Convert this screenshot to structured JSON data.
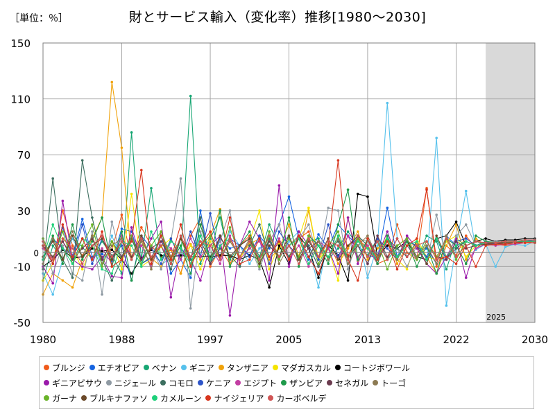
{
  "header": {
    "unit": "［単位：％］",
    "title": "財とサービス輸入（変化率）推移[1980～2030]"
  },
  "chart_data": {
    "type": "line",
    "title": "財とサービス輸入（変化率）推移[1980～2030]",
    "unit": "％",
    "xlabel": "",
    "ylabel": "",
    "xlim": [
      1980,
      2030
    ],
    "ylim": [
      -50,
      150
    ],
    "x_ticks": [
      "1980",
      "1988",
      "1997",
      "2005",
      "2013",
      "2022",
      "2030"
    ],
    "y_ticks": [
      "150",
      "110",
      "70",
      "30",
      "-10",
      "-50"
    ],
    "zero_label": "0",
    "forecast_start": 2025,
    "forecast_label": "2025",
    "grid": true,
    "legend_position": "bottom",
    "x": [
      1980,
      1981,
      1982,
      1983,
      1984,
      1985,
      1986,
      1987,
      1988,
      1989,
      1990,
      1991,
      1992,
      1993,
      1994,
      1995,
      1996,
      1997,
      1998,
      1999,
      2000,
      2001,
      2002,
      2003,
      2004,
      2005,
      2006,
      2007,
      2008,
      2009,
      2010,
      2011,
      2012,
      2013,
      2014,
      2015,
      2016,
      2017,
      2018,
      2019,
      2020,
      2021,
      2022,
      2023,
      2024,
      2025,
      2026,
      2027,
      2028,
      2029,
      2030
    ],
    "series": [
      {
        "name": "ブルンジ",
        "color": "#f05a1a",
        "values": [
          8,
          -8,
          30,
          5,
          -2,
          10,
          -5,
          2,
          27,
          -5,
          18,
          5,
          -3,
          2,
          -15,
          12,
          25,
          -10,
          3,
          -8,
          5,
          12,
          -3,
          8,
          20,
          -5,
          10,
          15,
          -3,
          8,
          5,
          -2,
          10,
          3,
          -8,
          -5,
          20,
          0,
          -5,
          46,
          -10,
          5,
          -2,
          12,
          3,
          8,
          6,
          5,
          6,
          7,
          8
        ]
      },
      {
        "name": "エチオピア",
        "color": "#1463e0",
        "values": [
          -5,
          10,
          3,
          -2,
          24,
          -3,
          -1,
          -6,
          17,
          15,
          -8,
          -4,
          12,
          -15,
          -5,
          -18,
          30,
          -8,
          10,
          3,
          5,
          -2,
          12,
          3,
          20,
          40,
          10,
          -5,
          13,
          3,
          20,
          12,
          5,
          -2,
          -4,
          32,
          -3,
          10,
          -3,
          3,
          -8,
          12,
          5,
          8,
          5,
          8,
          6,
          7,
          8,
          9,
          9
        ]
      },
      {
        "name": "ベナン",
        "color": "#17a673",
        "values": [
          -20,
          5,
          -5,
          10,
          4,
          -5,
          8,
          -2,
          -15,
          86,
          -5,
          46,
          -5,
          3,
          -5,
          112,
          -8,
          10,
          25,
          -5,
          5,
          10,
          -3,
          20,
          5,
          12,
          -5,
          8,
          10,
          -5,
          3,
          15,
          5,
          -2,
          10,
          -5,
          3,
          8,
          -5,
          12,
          8,
          -12,
          10,
          5,
          8,
          6,
          7,
          8,
          8,
          8,
          9
        ]
      },
      {
        "name": "ギニア",
        "color": "#56c1ec",
        "values": [
          -15,
          -30,
          -5,
          10,
          -3,
          5,
          -8,
          12,
          -5,
          10,
          -6,
          4,
          -8,
          -5,
          10,
          -4,
          12,
          -5,
          -2,
          15,
          5,
          -8,
          3,
          10,
          -5,
          8,
          15,
          5,
          -25,
          10,
          -5,
          3,
          12,
          -18,
          5,
          107,
          10,
          -3,
          5,
          -8,
          82,
          -38,
          5,
          44,
          2,
          6,
          -10,
          4,
          6,
          5,
          8
        ]
      },
      {
        "name": "タンザニア",
        "color": "#f0a20a",
        "values": [
          -30,
          -15,
          -20,
          -25,
          -5,
          10,
          25,
          122,
          75,
          -5,
          8,
          -4,
          -10,
          3,
          -15,
          6,
          -5,
          12,
          31,
          -8,
          -3,
          6,
          10,
          -5,
          3,
          20,
          -3,
          30,
          -5,
          8,
          -8,
          3,
          15,
          -5,
          3,
          10,
          -8,
          5,
          6,
          -3,
          -15,
          5,
          20,
          -5,
          10,
          5,
          7,
          6,
          7,
          8,
          8
        ]
      },
      {
        "name": "マダガスカル",
        "color": "#f5e400",
        "values": [
          -20,
          -8,
          10,
          3,
          -12,
          5,
          -5,
          8,
          -12,
          42,
          -10,
          -5,
          4,
          10,
          -3,
          5,
          -12,
          8,
          -5,
          10,
          -5,
          8,
          30,
          -12,
          6,
          -3,
          10,
          32,
          -5,
          3,
          -20,
          25,
          -6,
          5,
          -3,
          12,
          -5,
          -12,
          10,
          -3,
          -5,
          8,
          12,
          -3,
          5,
          7,
          6,
          6,
          7,
          7,
          7
        ]
      },
      {
        "name": "コートジボワール",
        "color": "#000000",
        "values": [
          -10,
          -5,
          2,
          -4,
          -3,
          3,
          1,
          2,
          -5,
          -15,
          -4,
          2,
          -2,
          -3,
          -2,
          -3,
          -3,
          -3,
          -2,
          -2,
          -5,
          -2,
          -5,
          -25,
          5,
          -8,
          12,
          3,
          -18,
          5,
          -2,
          -20,
          42,
          40,
          -3,
          5,
          3,
          8,
          -3,
          -5,
          10,
          12,
          22,
          5,
          8,
          10,
          8,
          9,
          9,
          10,
          10
        ]
      },
      {
        "name": "ギニアビサウ",
        "color": "#9a1aaa",
        "values": [
          -10,
          -22,
          37,
          -5,
          -10,
          -12,
          -3,
          -17,
          -18,
          18,
          -5,
          10,
          22,
          -32,
          3,
          -5,
          -20,
          5,
          12,
          -45,
          5,
          22,
          10,
          -20,
          48,
          -10,
          15,
          5,
          -10,
          3,
          -15,
          25,
          -8,
          10,
          -3,
          15,
          -5,
          12,
          3,
          -8,
          -15,
          -3,
          10,
          -18,
          5,
          7,
          6,
          7,
          7,
          8,
          8
        ]
      },
      {
        "name": "ニジェール",
        "color": "#8f9aa3",
        "values": [
          10,
          -15,
          5,
          -15,
          -20,
          15,
          -30,
          22,
          -5,
          10,
          -8,
          5,
          -12,
          8,
          53,
          -40,
          15,
          -5,
          8,
          30,
          -10,
          5,
          -12,
          8,
          20,
          -5,
          10,
          20,
          -5,
          32,
          30,
          -12,
          10,
          8,
          -5,
          10,
          3,
          -10,
          5,
          -8,
          27,
          -5,
          12,
          20,
          5,
          7,
          8,
          7,
          7,
          8,
          8
        ]
      },
      {
        "name": "コモロ",
        "color": "#3c6e5f",
        "values": [
          -12,
          53,
          -5,
          -18,
          66,
          25,
          -5,
          -20,
          -5,
          10,
          -8,
          -3,
          5,
          -12,
          10,
          -5,
          25,
          -8,
          3,
          -2,
          -10,
          5,
          20,
          -3,
          8,
          -3,
          10,
          5,
          -10,
          3,
          8,
          -5,
          12,
          5,
          -8,
          10,
          3,
          -3,
          8,
          -5,
          10,
          -5,
          3,
          8,
          5,
          7,
          7,
          8,
          8,
          8,
          8
        ]
      },
      {
        "name": "ケニア",
        "color": "#2d54c8",
        "values": [
          5,
          -8,
          18,
          -5,
          20,
          -8,
          10,
          -3,
          5,
          -20,
          12,
          3,
          -8,
          10,
          -5,
          15,
          -3,
          28,
          -5,
          10,
          5,
          -3,
          12,
          -8,
          15,
          5,
          -3,
          10,
          -5,
          20,
          -3,
          12,
          5,
          -8,
          10,
          3,
          -5,
          8,
          5,
          -3,
          10,
          -5,
          8,
          10,
          5,
          8,
          6,
          7,
          8,
          8,
          9
        ]
      },
      {
        "name": "エジプト",
        "color": "#c23da2",
        "values": [
          3,
          -5,
          8,
          -3,
          10,
          -5,
          3,
          -8,
          12,
          -3,
          5,
          -10,
          8,
          3,
          -5,
          10,
          -3,
          5,
          -8,
          12,
          -5,
          3,
          8,
          -3,
          10,
          -5,
          5,
          -10,
          8,
          3,
          -5,
          12,
          -3,
          5,
          -8,
          10,
          -3,
          5,
          -5,
          8,
          -3,
          -5,
          5,
          -8,
          3,
          6,
          5,
          6,
          6,
          7,
          7
        ]
      },
      {
        "name": "ザンビア",
        "color": "#1e9a4a",
        "values": [
          -5,
          12,
          -8,
          20,
          -5,
          8,
          25,
          -10,
          15,
          -20,
          10,
          -5,
          12,
          -8,
          5,
          -15,
          20,
          -5,
          30,
          -10,
          5,
          15,
          -8,
          10,
          -5,
          25,
          -10,
          12,
          5,
          -8,
          20,
          45,
          -5,
          10,
          -8,
          12,
          -5,
          8,
          -10,
          5,
          -15,
          10,
          5,
          -8,
          12,
          8,
          7,
          8,
          8,
          9,
          9
        ]
      },
      {
        "name": "セネガル",
        "color": "#6b3a4e",
        "values": [
          5,
          -3,
          8,
          -5,
          3,
          10,
          -5,
          8,
          -3,
          12,
          -5,
          3,
          8,
          -5,
          10,
          -3,
          5,
          -8,
          12,
          -3,
          5,
          10,
          -5,
          8,
          -3,
          12,
          -5,
          3,
          8,
          -5,
          10,
          -3,
          5,
          -8,
          12,
          -3,
          5,
          10,
          -5,
          8,
          -3,
          -5,
          8,
          3,
          5,
          6,
          6,
          7,
          7,
          8,
          8
        ]
      },
      {
        "name": "トーゴ",
        "color": "#8c7a52",
        "values": [
          -8,
          10,
          -5,
          15,
          -3,
          12,
          -8,
          5,
          10,
          -5,
          8,
          -12,
          15,
          -3,
          10,
          -8,
          5,
          12,
          -5,
          8,
          -3,
          10,
          -5,
          15,
          -8,
          5,
          12,
          -3,
          8,
          -5,
          10,
          -8,
          5,
          12,
          -3,
          8,
          -5,
          10,
          -3,
          5,
          -8,
          12,
          -3,
          5,
          8,
          6,
          7,
          7,
          8,
          8,
          8
        ]
      },
      {
        "name": "ガーナ",
        "color": "#6ab42a",
        "values": [
          10,
          -5,
          15,
          -8,
          5,
          20,
          -10,
          8,
          -5,
          12,
          -8,
          5,
          15,
          -5,
          10,
          -8,
          5,
          12,
          -5,
          18,
          -3,
          8,
          -10,
          15,
          -5,
          10,
          -3,
          12,
          -8,
          5,
          15,
          -5,
          10,
          -3,
          8,
          -12,
          5,
          10,
          -5,
          8,
          -3,
          10,
          -5,
          8,
          5,
          7,
          7,
          8,
          8,
          8,
          8
        ]
      },
      {
        "name": "ブルキナファソ",
        "color": "#6b4a2a",
        "values": [
          -3,
          8,
          -5,
          12,
          -3,
          5,
          10,
          -5,
          8,
          -3,
          12,
          -5,
          5,
          -8,
          10,
          -3,
          8,
          -5,
          12,
          -3,
          5,
          10,
          -8,
          5,
          -3,
          12,
          -5,
          8,
          -3,
          10,
          -5,
          5,
          12,
          -3,
          8,
          -5,
          10,
          -3,
          5,
          -8,
          12,
          -3,
          5,
          8,
          5,
          6,
          7,
          7,
          7,
          8,
          8
        ]
      },
      {
        "name": "カメルーン",
        "color": "#1ed07a",
        "values": [
          -5,
          20,
          3,
          -8,
          10,
          5,
          -12,
          -15,
          8,
          5,
          -10,
          15,
          -5,
          8,
          3,
          -8,
          12,
          -5,
          5,
          10,
          -3,
          8,
          -5,
          12,
          -3,
          5,
          10,
          -8,
          5,
          -3,
          12,
          -5,
          8,
          3,
          -5,
          10,
          -3,
          5,
          8,
          -5,
          10,
          -3,
          5,
          8,
          5,
          7,
          7,
          8,
          8,
          8,
          8
        ]
      },
      {
        "name": "ナイジェリア",
        "color": "#d8361e",
        "values": [
          5,
          -8,
          20,
          -3,
          10,
          -5,
          15,
          -10,
          -5,
          8,
          59,
          -8,
          12,
          -5,
          20,
          -10,
          5,
          15,
          -5,
          25,
          -8,
          -5,
          10,
          -3,
          8,
          -5,
          12,
          -3,
          -15,
          5,
          66,
          -5,
          -20,
          10,
          -5,
          8,
          -12,
          5,
          10,
          45,
          -5,
          -3,
          -8,
          5,
          -10,
          5,
          6,
          6,
          7,
          7,
          7
        ]
      },
      {
        "name": "カーボベルデ",
        "color": "#d05555",
        "values": [
          8,
          -5,
          10,
          3,
          -8,
          5,
          12,
          -3,
          8,
          -5,
          10,
          -3,
          5,
          -8,
          12,
          -3,
          8,
          5,
          -5,
          10,
          -3,
          8,
          -5,
          12,
          -3,
          5,
          -8,
          10,
          -3,
          8,
          5,
          -5,
          12,
          -3,
          8,
          -5,
          10,
          -3,
          5,
          8,
          -5,
          10,
          -3,
          5,
          8,
          7,
          7,
          8,
          8,
          9,
          9
        ]
      }
    ]
  }
}
